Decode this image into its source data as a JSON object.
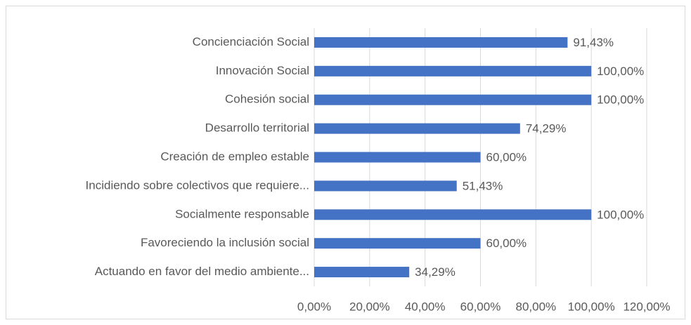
{
  "chart_data": {
    "type": "barh",
    "categories": [
      "Concienciación Social",
      "Innovación Social",
      "Cohesión social",
      "Desarrollo territorial",
      "Creación de empleo estable",
      "Incidiendo sobre colectivos que requiere...",
      "Socialmente responsable",
      "Favoreciendo la inclusión social",
      "Actuando en favor del medio ambiente..."
    ],
    "values": [
      91.43,
      100,
      100,
      74.29,
      60,
      51.43,
      100,
      60,
      34.29
    ],
    "value_labels": [
      "91,43%",
      "100,00%",
      "100,00%",
      "74,29%",
      "60,00%",
      "51,43%",
      "100,00%",
      "60,00%",
      "34,29%"
    ],
    "color": "#4472c4",
    "xlim": [
      0,
      120
    ],
    "xticks": [
      {
        "value": 0,
        "label": "0,00%"
      },
      {
        "value": 20,
        "label": "20,00%"
      },
      {
        "value": 40,
        "label": "40,00%"
      },
      {
        "value": 60,
        "label": "60,00%"
      },
      {
        "value": 80,
        "label": "80,00%"
      },
      {
        "value": 100,
        "label": "100,00%"
      },
      {
        "value": 120,
        "label": "120,00%"
      }
    ],
    "grid": true
  }
}
